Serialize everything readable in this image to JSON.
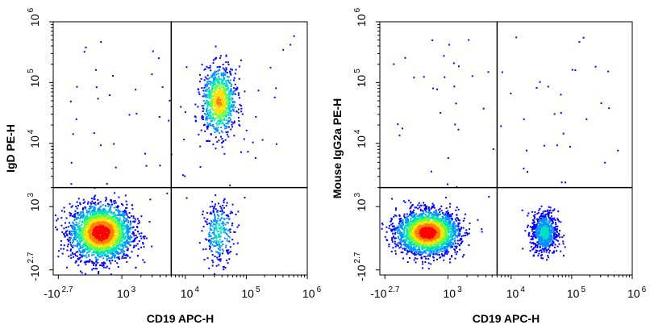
{
  "chart_data": [
    {
      "type": "scatter",
      "subtype": "flow-cytometry-density-dot-plot",
      "xlabel": "CD19 APC-H",
      "ylabel": "IgD PE-H",
      "x_scale": "biexponential",
      "y_scale": "biexponential",
      "xlim": [
        -500,
        1000000
      ],
      "ylim": [
        -500,
        1000000
      ],
      "x_ticks": [
        {
          "base": "-10",
          "exp": "2.7"
        },
        {
          "base": "10",
          "exp": "3"
        },
        {
          "base": "10",
          "exp": "4"
        },
        {
          "base": "10",
          "exp": "5"
        },
        {
          "base": "10",
          "exp": "6"
        }
      ],
      "y_ticks": [
        {
          "base": "-10",
          "exp": "2.7"
        },
        {
          "base": "10",
          "exp": "3"
        },
        {
          "base": "10",
          "exp": "4"
        },
        {
          "base": "10",
          "exp": "5"
        },
        {
          "base": "10",
          "exp": "6"
        }
      ],
      "quadrant_gate": {
        "x": 6000,
        "y": 2000
      },
      "populations": [
        {
          "name": "",
          "x_center": 500,
          "y_center": 400,
          "x_spread": 0.5,
          "y_spread": 0.45,
          "n": 2600,
          "peak_color": "#e60000"
        },
        {
          "name": "",
          "x_center": 35000,
          "y_center": 50000,
          "x_spread": 0.28,
          "y_spread": 0.55,
          "n": 900,
          "peak_color": "#ffd200"
        },
        {
          "name": "",
          "x_center": 35000,
          "y_center": 400,
          "x_spread": 0.25,
          "y_spread": 0.5,
          "n": 280,
          "peak_color": "#2f6bff"
        }
      ],
      "density_colors": [
        "#0000ff",
        "#0090ff",
        "#00e0c0",
        "#60ff40",
        "#ffe000",
        "#ff8000",
        "#ff0000"
      ],
      "grid": false,
      "legend": "none"
    },
    {
      "type": "scatter",
      "subtype": "flow-cytometry-density-dot-plot",
      "xlabel": "CD19 APC-H",
      "ylabel": "Mouse IgG2a PE-H",
      "x_scale": "biexponential",
      "y_scale": "biexponential",
      "xlim": [
        -500,
        1000000
      ],
      "ylim": [
        -500,
        1000000
      ],
      "x_ticks": [
        {
          "base": "-10",
          "exp": "2.7"
        },
        {
          "base": "10",
          "exp": "3"
        },
        {
          "base": "10",
          "exp": "4"
        },
        {
          "base": "10",
          "exp": "5"
        },
        {
          "base": "10",
          "exp": "6"
        }
      ],
      "y_ticks": [
        {
          "base": "-10",
          "exp": "2.7"
        },
        {
          "base": "10",
          "exp": "3"
        },
        {
          "base": "10",
          "exp": "4"
        },
        {
          "base": "10",
          "exp": "5"
        },
        {
          "base": "10",
          "exp": "6"
        }
      ],
      "quadrant_gate": {
        "x": 6000,
        "y": 2000
      },
      "populations": [
        {
          "name": "",
          "x_center": 500,
          "y_center": 400,
          "x_spread": 0.5,
          "y_spread": 0.35,
          "n": 2600,
          "peak_color": "#e60000"
        },
        {
          "name": "",
          "x_center": 35000,
          "y_center": 400,
          "x_spread": 0.22,
          "y_spread": 0.35,
          "n": 700,
          "peak_color": "#00c8ff"
        }
      ],
      "density_colors": [
        "#0000ff",
        "#0090ff",
        "#00e0c0",
        "#60ff40",
        "#ffe000",
        "#ff8000",
        "#ff0000"
      ],
      "grid": false,
      "legend": "none"
    }
  ]
}
